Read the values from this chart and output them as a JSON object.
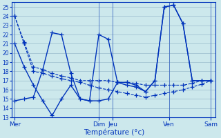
{
  "xlabel": "Température (°c)",
  "background_color": "#cce8ec",
  "grid_color": "#99bbcc",
  "line_color": "#0033bb",
  "ylim": [
    13,
    25.5
  ],
  "yticks": [
    13,
    14,
    15,
    16,
    17,
    18,
    19,
    20,
    21,
    22,
    23,
    24,
    25
  ],
  "day_labels": [
    "Mer",
    "Dim",
    "Jeu",
    "Ven",
    "Sam"
  ],
  "series": [
    {
      "x": [
        0,
        1,
        2,
        3,
        4,
        5,
        6,
        7,
        8,
        9,
        10,
        11,
        12,
        13,
        14,
        15,
        16,
        17,
        18,
        19,
        20,
        21
      ],
      "y": [
        24,
        21.2,
        18.5,
        18.2,
        17.8,
        17.5,
        17.3,
        17.0,
        17.0,
        17.0,
        17.0,
        16.8,
        16.8,
        16.7,
        16.5,
        16.5,
        16.5,
        16.5,
        16.5,
        16.7,
        17.0,
        17.0
      ],
      "linestyle": "--",
      "linewidth": 0.8
    },
    {
      "x": [
        0,
        1,
        2,
        3,
        4,
        5,
        6,
        7,
        8,
        9,
        10,
        11,
        12,
        13,
        14,
        15,
        16,
        17,
        18,
        19,
        20,
        21
      ],
      "y": [
        24,
        21.0,
        18.0,
        17.8,
        17.5,
        17.2,
        17.0,
        16.8,
        16.5,
        16.2,
        16.0,
        15.8,
        15.6,
        15.4,
        15.2,
        15.4,
        15.6,
        15.8,
        16.0,
        16.3,
        16.6,
        17.0
      ],
      "linestyle": "--",
      "linewidth": 0.8
    },
    {
      "x": [
        0,
        1,
        2,
        3,
        4,
        5,
        6,
        7,
        8,
        9,
        10,
        11,
        12,
        13,
        14,
        15,
        16,
        17,
        18,
        19,
        20,
        21
      ],
      "y": [
        21,
        18.5,
        16.5,
        14.8,
        13.2,
        15.0,
        16.5,
        15.0,
        14.8,
        22.0,
        21.5,
        16.8,
        16.5,
        16.3,
        15.8,
        17.0,
        25.0,
        25.2,
        23.2,
        17.0,
        17.0,
        17.0
      ],
      "linestyle": "-",
      "linewidth": 1.0
    },
    {
      "x": [
        0,
        1,
        2,
        3,
        4,
        5,
        6,
        7,
        8,
        9,
        10,
        11,
        12,
        13,
        14,
        15,
        16,
        17,
        18,
        19,
        20,
        21
      ],
      "y": [
        14.8,
        15.0,
        15.2,
        18.2,
        22.2,
        22.0,
        17.8,
        15.0,
        14.8,
        14.8,
        15.0,
        16.8,
        16.8,
        16.5,
        15.8,
        17.0,
        25.0,
        25.2,
        23.2,
        17.0,
        17.0,
        17.0
      ],
      "linestyle": "-",
      "linewidth": 1.0
    }
  ],
  "day_x": [
    0,
    9.0,
    10.5,
    16.5,
    21.0
  ],
  "day_vlines": [
    0,
    9.0,
    10.5,
    16.5,
    21.0
  ],
  "xlim": [
    -0.3,
    21.5
  ]
}
